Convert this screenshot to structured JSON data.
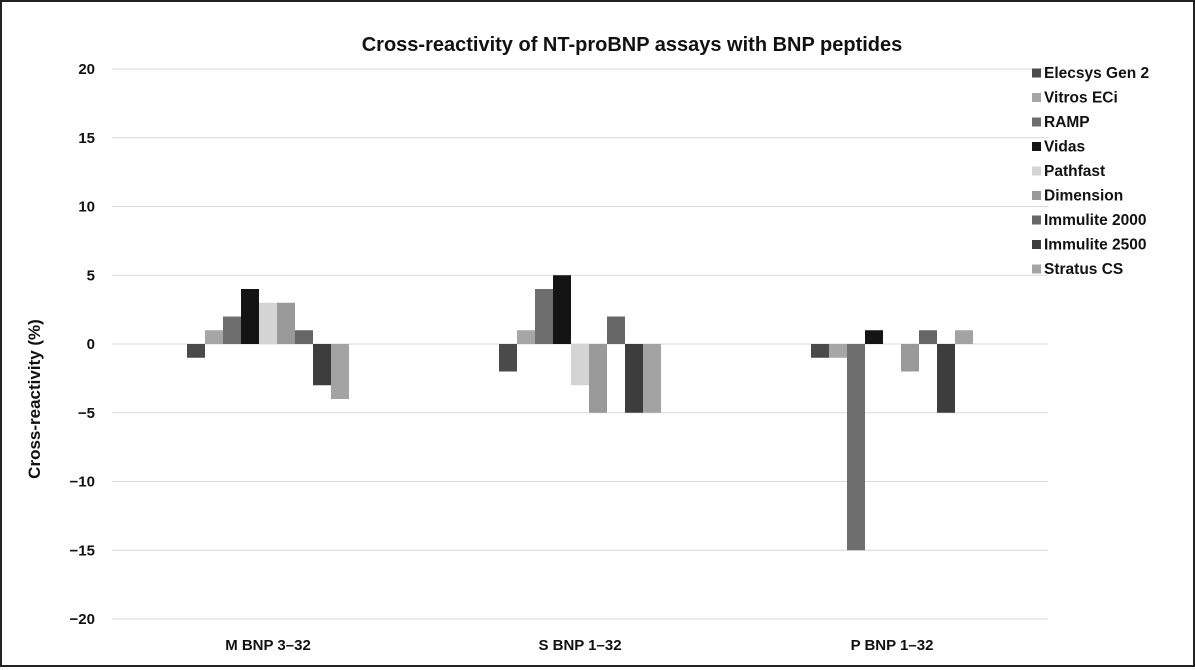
{
  "chart_data": {
    "type": "bar",
    "title": "Cross-reactivity of NT-proBNP assays with BNP peptides",
    "xlabel": "",
    "ylabel": "Cross-reactivity (%)",
    "ylim": [
      -20,
      20
    ],
    "yticks": [
      20,
      15,
      10,
      5,
      0,
      -5,
      -10,
      -15,
      -20
    ],
    "ytick_labels": [
      "20",
      "15",
      "10",
      "5",
      "0",
      "−5",
      "−10",
      "−15",
      "−20"
    ],
    "categories": [
      "M BNP 3–32",
      "S BNP 1–32",
      "P BNP 1–32"
    ],
    "grid": true,
    "legend_position": "right",
    "series": [
      {
        "name": "Elecsys Gen 2",
        "color": "#4a4a4a",
        "values": [
          -1,
          -2,
          -1
        ]
      },
      {
        "name": "Vitros ECi",
        "color": "#a6a6a6",
        "values": [
          1,
          1,
          -1
        ]
      },
      {
        "name": "RAMP",
        "color": "#6e6e6e",
        "values": [
          2,
          4,
          -15
        ]
      },
      {
        "name": "Vidas",
        "color": "#141414",
        "values": [
          4,
          5,
          1
        ]
      },
      {
        "name": "Pathfast",
        "color": "#d4d4d4",
        "values": [
          3,
          -3,
          0
        ]
      },
      {
        "name": "Dimension",
        "color": "#999999",
        "values": [
          3,
          -5,
          -2
        ]
      },
      {
        "name": "Immulite 2000",
        "color": "#666666",
        "values": [
          1,
          2,
          1
        ]
      },
      {
        "name": "Immulite 2500",
        "color": "#3d3d3d",
        "values": [
          -3,
          -5,
          -5
        ]
      },
      {
        "name": "Stratus CS",
        "color": "#a3a3a3",
        "values": [
          -4,
          -5,
          1
        ]
      }
    ]
  }
}
